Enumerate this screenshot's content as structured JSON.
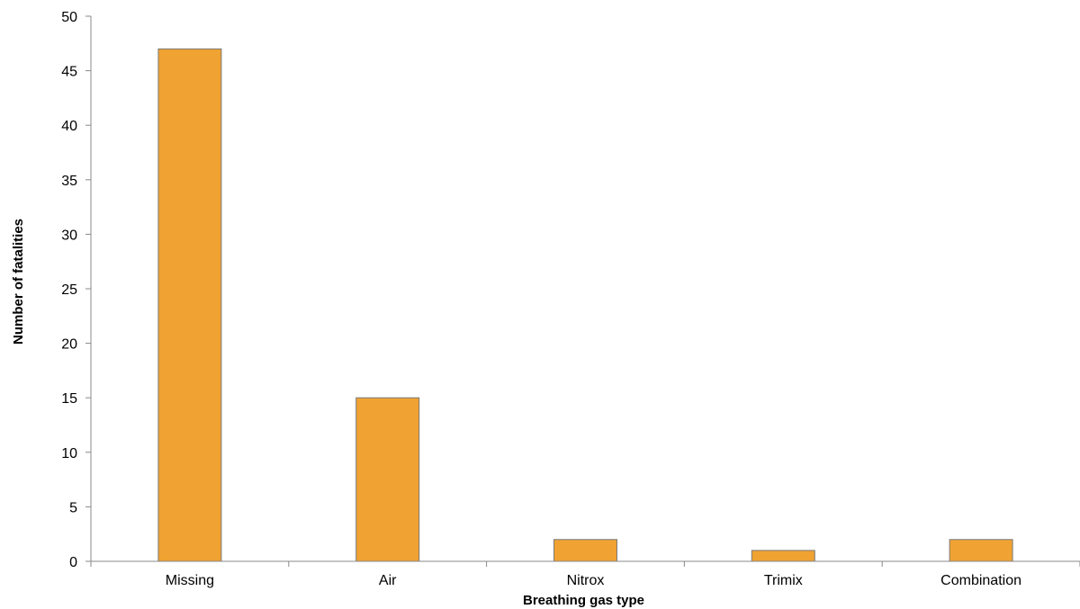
{
  "chart_data": {
    "type": "bar",
    "title": "",
    "xlabel": "Breathing gas type",
    "ylabel": "Number of fatalities",
    "categories": [
      "Missing",
      "Air",
      "Nitrox",
      "Trimix",
      "Combination"
    ],
    "values": [
      47,
      15,
      2,
      1,
      2
    ],
    "ylim": [
      0,
      50
    ],
    "yticks": [
      "0",
      "5",
      "10",
      "15",
      "20",
      "25",
      "30",
      "35",
      "40",
      "45",
      "50"
    ],
    "grid": false,
    "legend": "none",
    "colors": {
      "bar_fill": "#F0A232",
      "bar_stroke": "#7A7A7A",
      "axis": "#888888"
    }
  }
}
